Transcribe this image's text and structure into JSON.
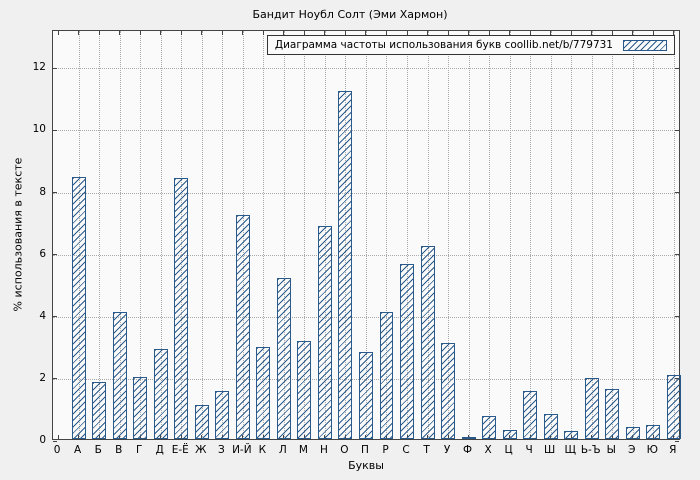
{
  "chart_data": {
    "type": "bar",
    "title": "Бандит Ноубл Солт (Эми Хармон)",
    "legend": "Диаграмма частоты использования букв coollib.net/b/779731",
    "xlabel": "Буквы",
    "ylabel": "% использования в тексте",
    "x_origin_label": "0",
    "categories": [
      "А",
      "Б",
      "В",
      "Г",
      "Д",
      "Е-Ё",
      "Ж",
      "З",
      "И-Й",
      "К",
      "Л",
      "М",
      "Н",
      "О",
      "П",
      "Р",
      "С",
      "Т",
      "У",
      "Ф",
      "Х",
      "Ц",
      "Ч",
      "Ш",
      "Щ",
      "Ь-Ъ",
      "Ы",
      "Э",
      "Ю",
      "Я"
    ],
    "values": [
      8.45,
      1.85,
      4.1,
      2.0,
      2.9,
      8.4,
      1.1,
      1.55,
      7.2,
      2.95,
      5.2,
      3.15,
      6.85,
      11.2,
      2.8,
      4.1,
      5.65,
      6.2,
      3.1,
      0.05,
      0.75,
      0.3,
      1.55,
      0.8,
      0.25,
      1.95,
      1.6,
      0.4,
      0.45,
      2.05
    ],
    "yticks": [
      0,
      2,
      4,
      6,
      8,
      10,
      12
    ],
    "ylim": [
      0,
      13.2
    ],
    "grid": "dotted, horizontal and vertical at every tick",
    "legend_position": "top-right, boxed",
    "colors": {
      "accent": "#2a5a8c",
      "figure_background": "#f0f0f0",
      "plot_background": "#fafafa",
      "gridline": "#a9a9a9"
    }
  }
}
